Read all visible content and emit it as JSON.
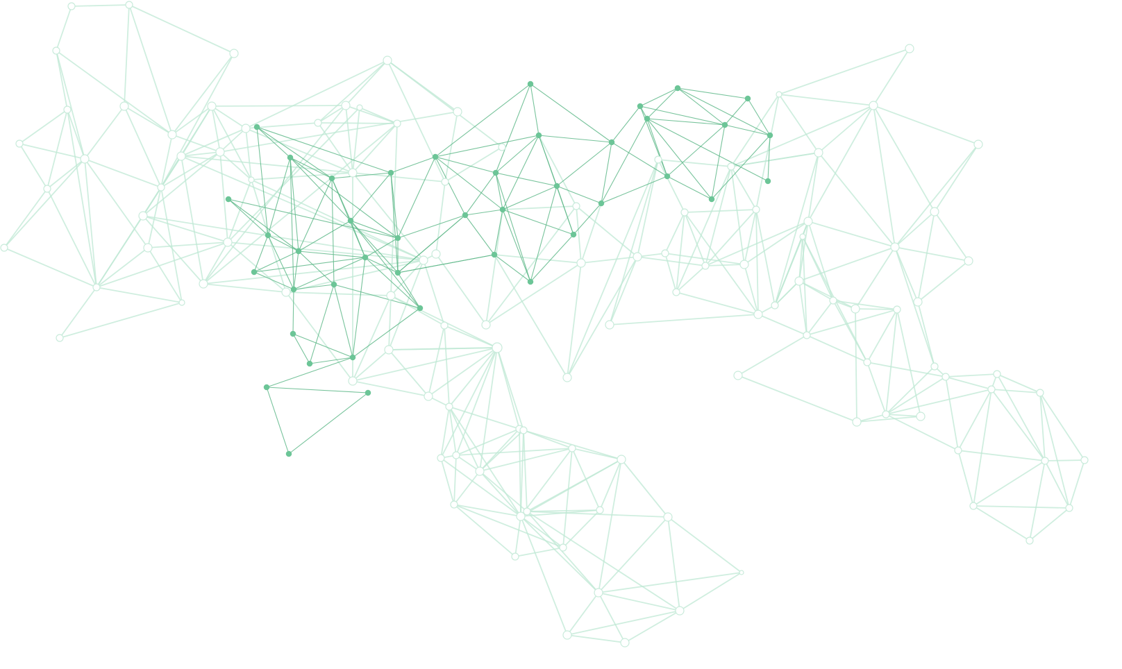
{
  "image": {
    "subject": "network-graph-illustration",
    "colors": {
      "background": "#ffffff",
      "node_fill_solid": "#6cc597",
      "edge_solid": "#5fb88a",
      "node_fill_pale": "#ffffff",
      "node_stroke_pale": "#c9ebdb",
      "edge_pale": "#bfe8d4"
    },
    "clusters": [
      {
        "name": "top-left-pale-cluster",
        "style": "pale"
      },
      {
        "name": "center-left-dense-cluster",
        "style": "mixed"
      },
      {
        "name": "center-top-solid-cluster",
        "style": "solid"
      },
      {
        "name": "top-right-solid-cluster",
        "style": "solid"
      },
      {
        "name": "right-pale-cluster",
        "style": "pale"
      },
      {
        "name": "bottom-center-pale-cluster",
        "style": "pale"
      },
      {
        "name": "far-right-pale-cluster",
        "style": "pale"
      }
    ]
  }
}
